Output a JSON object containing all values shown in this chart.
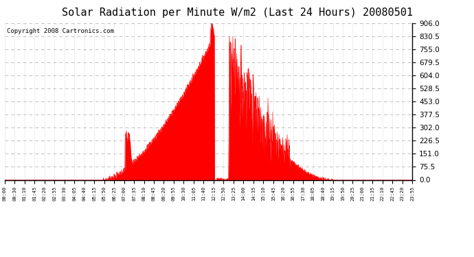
{
  "title": "Solar Radiation per Minute W/m2 (Last 24 Hours) 20080501",
  "copyright": "Copyright 2008 Cartronics.com",
  "y_ticks": [
    0.0,
    75.5,
    151.0,
    226.5,
    302.0,
    377.5,
    453.0,
    528.5,
    604.0,
    679.5,
    755.0,
    830.5,
    906.0
  ],
  "y_max": 906.0,
  "y_min": 0.0,
  "fill_color": "#FF0000",
  "line_color": "#FF0000",
  "dashed_line_color": "#FF0000",
  "grid_color": "#C0C0C0",
  "bg_color": "#FFFFFF",
  "title_fontsize": 11,
  "copyright_fontsize": 6.5,
  "x_tick_labels": [
    "00:00",
    "00:30",
    "01:10",
    "01:45",
    "02:20",
    "02:55",
    "03:30",
    "04:05",
    "04:40",
    "05:15",
    "05:50",
    "06:25",
    "07:00",
    "07:35",
    "08:10",
    "08:45",
    "09:20",
    "09:55",
    "10:30",
    "11:05",
    "11:40",
    "12:15",
    "12:50",
    "13:25",
    "14:00",
    "14:35",
    "15:10",
    "15:45",
    "16:20",
    "16:55",
    "17:30",
    "18:05",
    "18:40",
    "19:15",
    "19:50",
    "20:25",
    "21:00",
    "21:35",
    "22:10",
    "22:45",
    "23:20",
    "23:55"
  ]
}
